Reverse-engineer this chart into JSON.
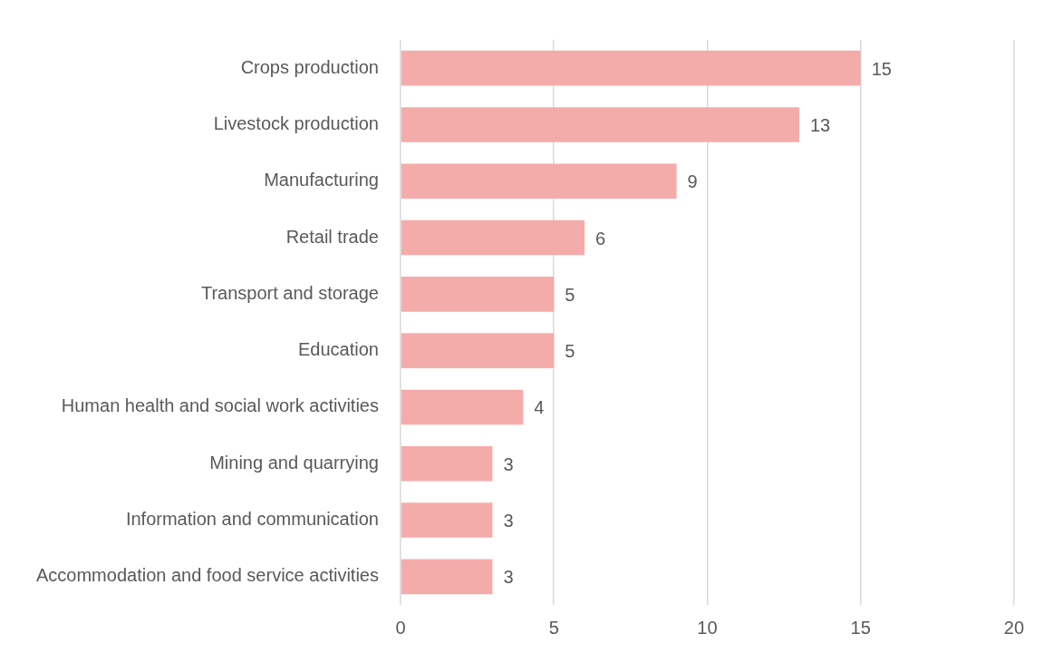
{
  "chart_data": {
    "type": "bar",
    "orientation": "horizontal",
    "categories": [
      "Crops production",
      "Livestock production",
      "Manufacturing",
      "Retail trade",
      "Transport and storage",
      "Education",
      "Human health and social work activities",
      "Mining and quarrying",
      "Information and communication",
      "Accommodation and food service activities"
    ],
    "values": [
      15,
      13,
      9,
      6,
      5,
      5,
      4,
      3,
      3,
      3
    ],
    "color": "#f4acab",
    "xlim": [
      0,
      20
    ],
    "xticks": [
      0,
      5,
      10,
      15,
      20
    ],
    "grid": "x",
    "data_labels": true,
    "legend": false
  }
}
